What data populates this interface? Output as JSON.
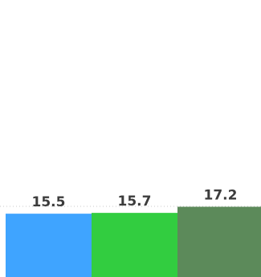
{
  "chart_data": {
    "type": "bar",
    "title": "",
    "xlabel": "",
    "ylabel": "",
    "ylim": [
      0,
      17.3
    ],
    "grid": true,
    "legend": "none",
    "series": [
      {
        "value": 15.5,
        "color": "#3fa4ff"
      },
      {
        "value": 15.7,
        "color": "#32cd40"
      },
      {
        "value": 17.2,
        "color": "#5c8a5a"
      }
    ]
  }
}
